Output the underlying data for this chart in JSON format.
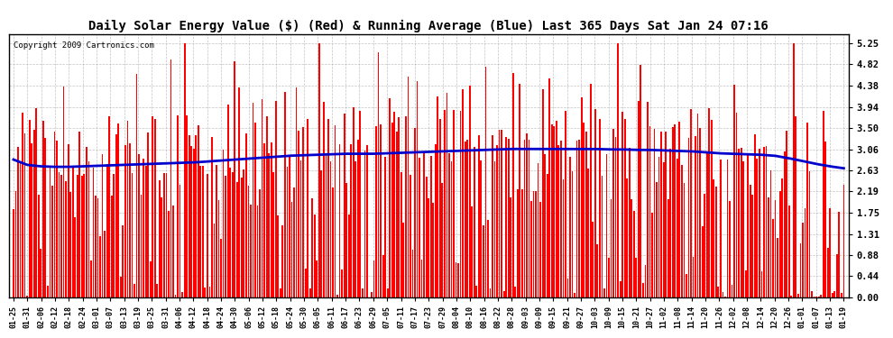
{
  "title": "Daily Solar Energy Value ($) (Red) & Running Average (Blue) Last 365 Days Sat Jan 24 07:16",
  "copyright_text": "Copyright 2009 Cartronics.com",
  "yticks": [
    0.0,
    0.44,
    0.88,
    1.31,
    1.75,
    2.19,
    2.63,
    3.06,
    3.5,
    3.94,
    4.38,
    4.82,
    5.25
  ],
  "ylim": [
    0.0,
    5.45
  ],
  "bar_color": "#ff0000",
  "avg_color": "#0000cc",
  "background_color": "#ffffff",
  "grid_color": "#aaaaaa",
  "title_fontsize": 10,
  "avg_line": [
    2.85,
    2.74,
    2.71,
    2.7,
    2.7,
    2.71,
    2.72,
    2.73,
    2.74,
    2.75,
    2.76,
    2.77,
    2.78,
    2.79,
    2.81,
    2.83,
    2.85,
    2.87,
    2.89,
    2.91,
    2.93,
    2.94,
    2.95,
    2.96,
    2.97,
    2.97,
    2.97,
    2.98,
    2.99,
    3.0,
    3.01,
    3.02,
    3.03,
    3.04,
    3.05,
    3.06,
    3.07,
    3.07,
    3.07,
    3.07,
    3.07,
    3.07,
    3.07,
    3.06,
    3.06,
    3.05,
    3.05,
    3.04,
    3.03,
    3.02,
    3.0,
    2.98,
    2.97,
    2.96,
    2.95,
    2.93,
    2.88,
    2.82,
    2.76,
    2.71,
    2.67
  ],
  "x_labels": [
    "01-25",
    "01-31",
    "02-06",
    "02-12",
    "02-18",
    "02-24",
    "03-01",
    "03-07",
    "03-13",
    "03-19",
    "03-25",
    "03-31",
    "04-06",
    "04-12",
    "04-18",
    "04-24",
    "04-30",
    "05-06",
    "05-12",
    "05-18",
    "05-24",
    "05-30",
    "06-05",
    "06-11",
    "06-17",
    "06-23",
    "06-29",
    "07-05",
    "07-11",
    "07-17",
    "07-23",
    "07-29",
    "08-04",
    "08-10",
    "08-16",
    "08-22",
    "08-28",
    "09-03",
    "09-09",
    "09-15",
    "09-21",
    "09-27",
    "10-03",
    "10-09",
    "10-15",
    "10-21",
    "10-27",
    "11-02",
    "11-08",
    "11-14",
    "11-20",
    "11-26",
    "12-02",
    "12-08",
    "12-14",
    "12-20",
    "12-26",
    "01-01",
    "01-07",
    "01-13",
    "01-19"
  ]
}
